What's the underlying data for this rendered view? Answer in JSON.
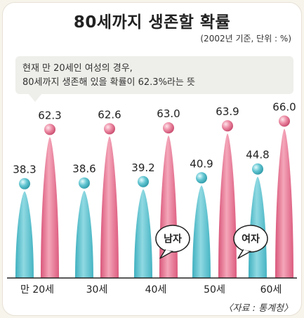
{
  "title": "80세까지 생존할 확률",
  "unit_note": "(2002년 기준, 단위 : %)",
  "callout": {
    "line1": "현재 만 20세인 여성의 경우,",
    "line2": "80세까지 생존해 있을 확률이 62.3%라는 뜻"
  },
  "source": "〈자료 : 통계청〉",
  "colors": {
    "male": "#58c3cf",
    "female": "#e8738f"
  },
  "chart_data": {
    "type": "bar",
    "title": "80세까지 생존할 확률",
    "categories": [
      "만 20세",
      "30세",
      "40세",
      "50세",
      "60세"
    ],
    "series": [
      {
        "name": "남자",
        "values": [
          38.3,
          38.6,
          39.2,
          40.9,
          44.8
        ]
      },
      {
        "name": "여자",
        "values": [
          62.3,
          62.6,
          63.0,
          63.9,
          66.0
        ]
      }
    ],
    "value_labels": {
      "남자": [
        "38.3",
        "38.6",
        "39.2",
        "40.9",
        "44.8"
      ],
      "여자": [
        "62.3",
        "62.6",
        "63.0",
        "63.9",
        "66.0"
      ]
    },
    "ylim": [
      0,
      70
    ],
    "xlabel": "",
    "ylabel": "",
    "grid": false,
    "legend": "inline-bubbles"
  }
}
